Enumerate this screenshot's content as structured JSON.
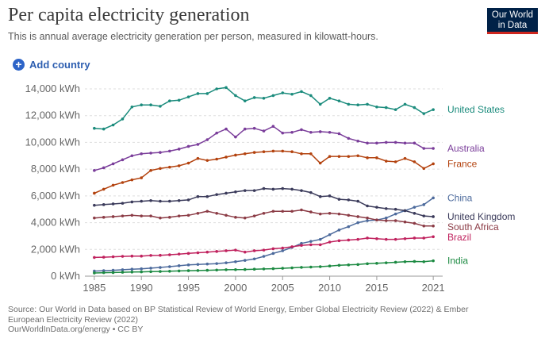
{
  "header": {
    "title": "Per capita electricity generation",
    "subtitle": "This is annual average electricity generation per person, measured in kilowatt-hours.",
    "logo_line1": "Our World",
    "logo_line2": "in Data"
  },
  "controls": {
    "add_country_label": "Add country",
    "add_icon": "plus-icon"
  },
  "footer": {
    "source": "Source: Our World in Data based on BP Statistical Review of World Energy, Ember Global Electricity Review (2022) & Ember European Electricity Review (2022)",
    "url_line": "OurWorldInData.org/energy • CC BY"
  },
  "chart_data": {
    "type": "line",
    "title": "Per capita electricity generation",
    "x": [
      1985,
      1986,
      1987,
      1988,
      1989,
      1990,
      1991,
      1992,
      1993,
      1994,
      1995,
      1996,
      1997,
      1998,
      1999,
      2000,
      2001,
      2002,
      2003,
      2004,
      2005,
      2006,
      2007,
      2008,
      2009,
      2010,
      2011,
      2012,
      2013,
      2014,
      2015,
      2016,
      2017,
      2018,
      2019,
      2020,
      2021
    ],
    "xlim": [
      1984,
      2022
    ],
    "xticks": [
      1985,
      1990,
      1995,
      2000,
      2005,
      2010,
      2015,
      2021
    ],
    "ylim": [
      0,
      14000
    ],
    "yticks": [
      0,
      2000,
      4000,
      6000,
      8000,
      10000,
      12000,
      14000
    ],
    "ytick_labels": [
      "0 kWh",
      "2,000 kWh",
      "4,000 kWh",
      "6,000 kWh",
      "8,000 kWh",
      "10,000 kWh",
      "12,000 kWh",
      "14,000 kWh"
    ],
    "grid": true,
    "legend": "right-end labels",
    "series": [
      {
        "name": "United States",
        "color": "#1a8b7c",
        "values": [
          11050,
          11000,
          11300,
          11750,
          12650,
          12800,
          12800,
          12700,
          13100,
          13150,
          13400,
          13650,
          13650,
          14000,
          14100,
          13500,
          13100,
          13350,
          13300,
          13500,
          13700,
          13600,
          13800,
          13500,
          12850,
          13300,
          13100,
          12850,
          12800,
          12850,
          12650,
          12600,
          12450,
          12850,
          12600,
          12150,
          12450
        ]
      },
      {
        "name": "Australia",
        "color": "#7a3d9a",
        "values": [
          7900,
          8100,
          8400,
          8700,
          9000,
          9150,
          9200,
          9250,
          9350,
          9500,
          9700,
          9850,
          10200,
          10700,
          11000,
          10400,
          11000,
          11050,
          10850,
          11200,
          10700,
          10750,
          10950,
          10750,
          10800,
          10750,
          10650,
          10300,
          10100,
          9950,
          9950,
          10000,
          10000,
          9950,
          9950,
          9550,
          9550
        ]
      },
      {
        "name": "France",
        "color": "#b3420e",
        "values": [
          6200,
          6500,
          6800,
          7000,
          7200,
          7350,
          7900,
          8050,
          8150,
          8250,
          8450,
          8800,
          8650,
          8750,
          8900,
          9050,
          9150,
          9250,
          9300,
          9350,
          9350,
          9300,
          9150,
          9150,
          8450,
          8950,
          8950,
          8950,
          9000,
          8850,
          8850,
          8600,
          8550,
          8800,
          8550,
          8050,
          8400
        ]
      },
      {
        "name": "China",
        "color": "#4c6a9c",
        "values": [
          380,
          410,
          440,
          480,
          520,
          550,
          600,
          650,
          710,
          780,
          840,
          880,
          910,
          940,
          1000,
          1080,
          1180,
          1290,
          1480,
          1700,
          1900,
          2150,
          2450,
          2600,
          2750,
          3100,
          3450,
          3700,
          4000,
          4150,
          4200,
          4350,
          4650,
          4900,
          5150,
          5350,
          5850
        ]
      },
      {
        "name": "United Kingdom",
        "color": "#3a3a5a",
        "values": [
          5300,
          5350,
          5400,
          5450,
          5550,
          5600,
          5650,
          5600,
          5600,
          5650,
          5700,
          5950,
          5950,
          6100,
          6200,
          6300,
          6400,
          6400,
          6550,
          6500,
          6550,
          6500,
          6400,
          6250,
          5950,
          6000,
          5750,
          5700,
          5600,
          5250,
          5150,
          5050,
          5000,
          4900,
          4700,
          4500,
          4450
        ]
      },
      {
        "name": "South Africa",
        "color": "#8b3b45",
        "values": [
          4350,
          4400,
          4450,
          4500,
          4550,
          4500,
          4500,
          4350,
          4400,
          4500,
          4550,
          4700,
          4850,
          4700,
          4550,
          4400,
          4350,
          4500,
          4700,
          4850,
          4850,
          4850,
          4950,
          4800,
          4650,
          4700,
          4650,
          4550,
          4450,
          4350,
          4200,
          4150,
          4150,
          4050,
          3950,
          3750,
          3750
        ]
      },
      {
        "name": "Brazil",
        "color": "#c0225e",
        "values": [
          1400,
          1420,
          1450,
          1480,
          1500,
          1500,
          1550,
          1560,
          1600,
          1650,
          1700,
          1750,
          1800,
          1850,
          1900,
          1950,
          1800,
          1900,
          1950,
          2050,
          2100,
          2200,
          2300,
          2350,
          2350,
          2550,
          2650,
          2700,
          2750,
          2850,
          2800,
          2750,
          2750,
          2800,
          2850,
          2850,
          2950
        ]
      },
      {
        "name": "India",
        "color": "#1c8a42",
        "values": [
          240,
          260,
          270,
          290,
          310,
          320,
          340,
          350,
          370,
          390,
          410,
          420,
          440,
          460,
          480,
          490,
          500,
          520,
          540,
          560,
          590,
          620,
          660,
          680,
          710,
          760,
          810,
          840,
          870,
          930,
          960,
          1000,
          1040,
          1080,
          1100,
          1080,
          1150
        ]
      }
    ]
  }
}
